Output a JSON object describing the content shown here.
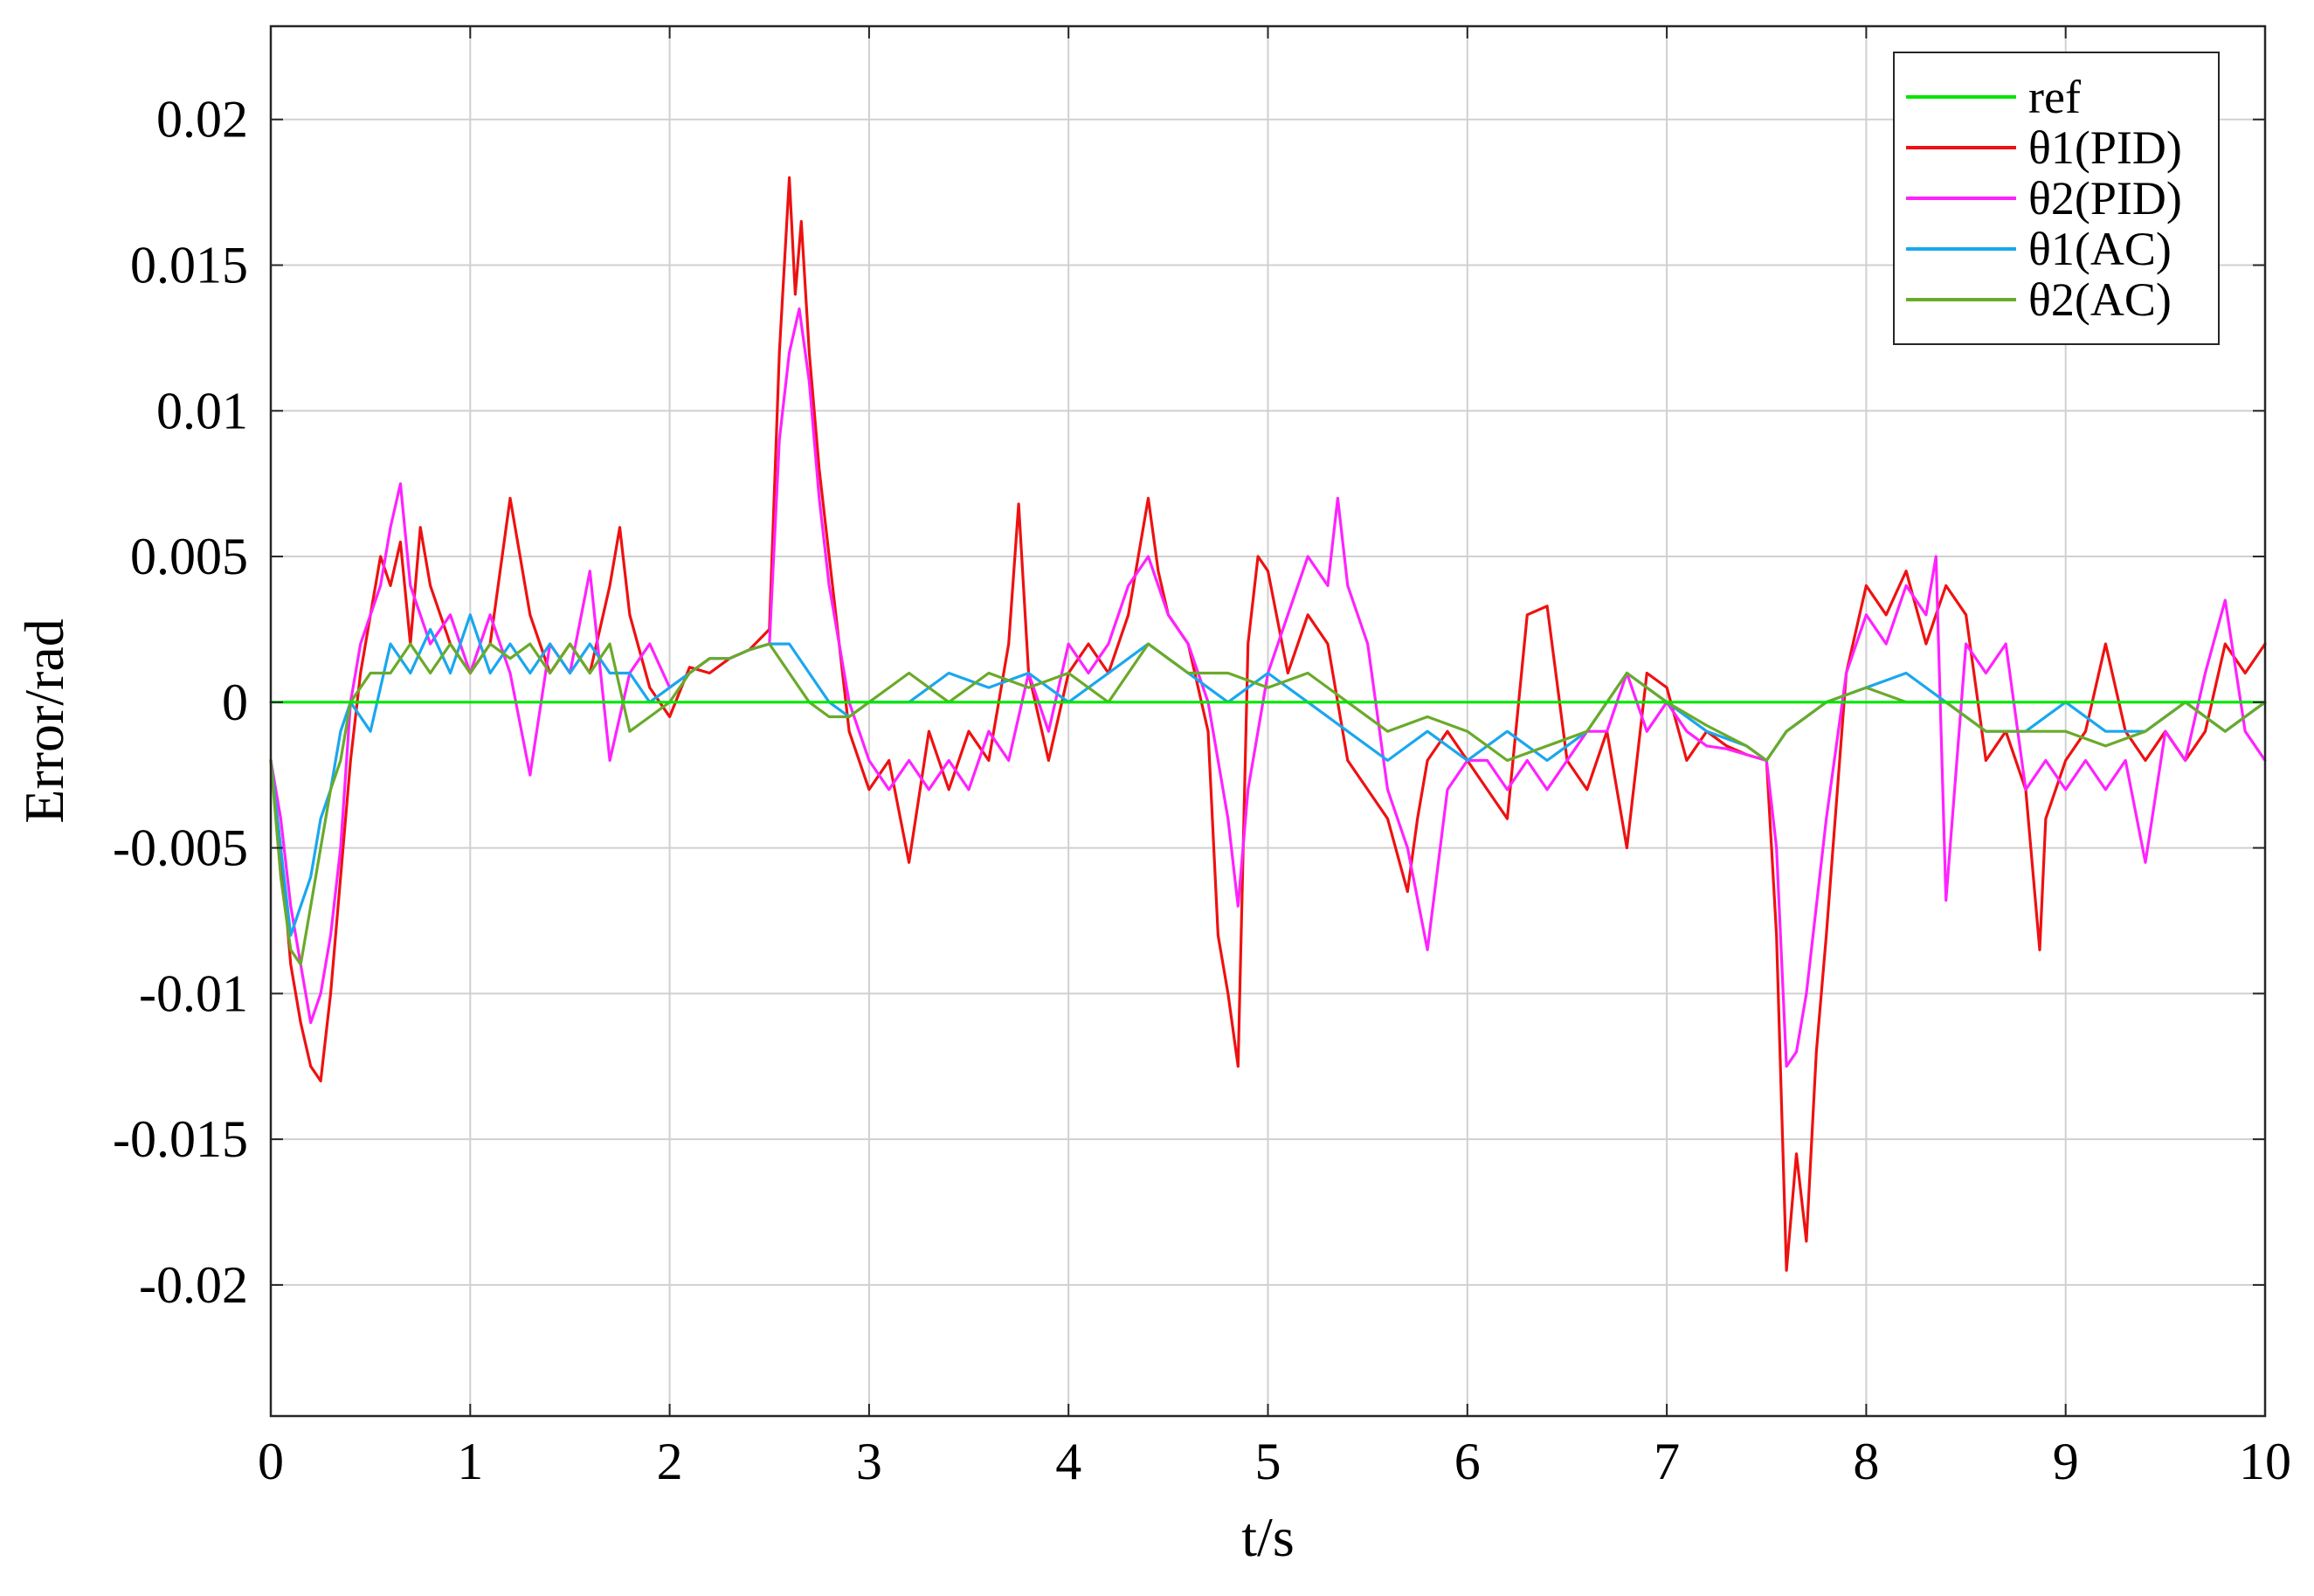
{
  "chart_data": {
    "type": "line",
    "title": "",
    "xlabel": "t/s",
    "ylabel": "Error/rad",
    "xlim": [
      0,
      10
    ],
    "ylim": [
      -0.0245,
      0.0232
    ],
    "xticks": [
      0,
      1,
      2,
      3,
      4,
      5,
      6,
      7,
      8,
      9,
      10
    ],
    "xtick_labels": [
      "0",
      "1",
      "2",
      "3",
      "4",
      "5",
      "6",
      "7",
      "8",
      "9",
      "10"
    ],
    "yticks": [
      -0.02,
      -0.015,
      -0.01,
      -0.005,
      0,
      0.005,
      0.01,
      0.015,
      0.02
    ],
    "ytick_labels": [
      "-0.02",
      "-0.015",
      "-0.01",
      "-0.005",
      "0",
      "0.005",
      "0.01",
      "0.015",
      "0.02"
    ],
    "grid": true,
    "legend_position": "top-right",
    "series": [
      {
        "name": "ref",
        "color": "#00e600",
        "x": [
          0,
          10
        ],
        "y": [
          0,
          0
        ]
      },
      {
        "name": "θ1(PID)",
        "color": "#ee1111",
        "x": [
          0,
          0.05,
          0.1,
          0.15,
          0.2,
          0.25,
          0.3,
          0.35,
          0.4,
          0.45,
          0.5,
          0.55,
          0.6,
          0.65,
          0.7,
          0.75,
          0.8,
          0.9,
          1.0,
          1.1,
          1.2,
          1.3,
          1.4,
          1.5,
          1.6,
          1.7,
          1.75,
          1.8,
          1.9,
          2.0,
          2.1,
          2.2,
          2.3,
          2.4,
          2.5,
          2.55,
          2.6,
          2.63,
          2.66,
          2.7,
          2.75,
          2.8,
          2.85,
          2.9,
          3.0,
          3.1,
          3.2,
          3.3,
          3.4,
          3.5,
          3.6,
          3.7,
          3.75,
          3.8,
          3.9,
          4.0,
          4.1,
          4.2,
          4.3,
          4.4,
          4.45,
          4.5,
          4.6,
          4.7,
          4.75,
          4.8,
          4.85,
          4.9,
          4.95,
          5.0,
          5.1,
          5.2,
          5.3,
          5.4,
          5.5,
          5.6,
          5.7,
          5.75,
          5.8,
          5.9,
          6.0,
          6.1,
          6.2,
          6.3,
          6.4,
          6.5,
          6.6,
          6.7,
          6.8,
          6.9,
          7.0,
          7.1,
          7.2,
          7.3,
          7.4,
          7.5,
          7.55,
          7.6,
          7.65,
          7.7,
          7.75,
          7.8,
          7.9,
          8.0,
          8.1,
          8.2,
          8.3,
          8.4,
          8.5,
          8.6,
          8.7,
          8.8,
          8.87,
          8.9,
          9.0,
          9.1,
          9.2,
          9.3,
          9.4,
          9.5,
          9.6,
          9.7,
          9.8,
          9.9,
          10.0
        ],
        "y": [
          -0.002,
          -0.005,
          -0.009,
          -0.011,
          -0.0125,
          -0.013,
          -0.01,
          -0.006,
          -0.002,
          0.001,
          0.003,
          0.005,
          0.004,
          0.0055,
          0.002,
          0.006,
          0.004,
          0.002,
          0.001,
          0.002,
          0.007,
          0.003,
          0.001,
          0.002,
          0.001,
          0.004,
          0.006,
          0.003,
          0.0005,
          -0.0005,
          0.0012,
          0.001,
          0.0015,
          0.0018,
          0.0025,
          0.012,
          0.018,
          0.014,
          0.0165,
          0.012,
          0.008,
          0.005,
          0.002,
          -0.001,
          -0.003,
          -0.002,
          -0.0055,
          -0.001,
          -0.003,
          -0.001,
          -0.002,
          0.002,
          0.0068,
          0.001,
          -0.002,
          0.001,
          0.002,
          0.001,
          0.003,
          0.007,
          0.0045,
          0.003,
          0.002,
          -0.001,
          -0.008,
          -0.01,
          -0.0125,
          0.002,
          0.005,
          0.0045,
          0.001,
          0.003,
          0.002,
          -0.002,
          -0.003,
          -0.004,
          -0.0065,
          -0.004,
          -0.002,
          -0.001,
          -0.002,
          -0.003,
          -0.004,
          0.003,
          0.0033,
          -0.002,
          -0.003,
          -0.001,
          -0.005,
          0.001,
          0.0005,
          -0.002,
          -0.001,
          -0.0015,
          -0.0018,
          -0.002,
          -0.008,
          -0.0195,
          -0.0155,
          -0.0185,
          -0.012,
          -0.008,
          0.001,
          0.004,
          0.003,
          0.0045,
          0.002,
          0.004,
          0.003,
          -0.002,
          -0.001,
          -0.003,
          -0.0085,
          -0.004,
          -0.002,
          -0.001,
          0.002,
          -0.001,
          -0.002,
          -0.001,
          -0.002,
          -0.001,
          0.002,
          0.001,
          0.002
        ]
      },
      {
        "name": "θ2(PID)",
        "color": "#ff22ff",
        "x": [
          0,
          0.05,
          0.1,
          0.15,
          0.2,
          0.25,
          0.3,
          0.35,
          0.4,
          0.45,
          0.5,
          0.55,
          0.6,
          0.65,
          0.7,
          0.75,
          0.8,
          0.9,
          1.0,
          1.1,
          1.2,
          1.3,
          1.4,
          1.5,
          1.6,
          1.7,
          1.8,
          1.9,
          2.0,
          2.1,
          2.2,
          2.3,
          2.4,
          2.5,
          2.55,
          2.6,
          2.65,
          2.7,
          2.75,
          2.8,
          2.85,
          2.9,
          3.0,
          3.1,
          3.2,
          3.3,
          3.4,
          3.5,
          3.6,
          3.7,
          3.8,
          3.9,
          4.0,
          4.1,
          4.2,
          4.3,
          4.4,
          4.5,
          4.6,
          4.7,
          4.8,
          4.85,
          4.9,
          5.0,
          5.1,
          5.2,
          5.3,
          5.35,
          5.4,
          5.5,
          5.6,
          5.7,
          5.8,
          5.9,
          6.0,
          6.1,
          6.2,
          6.3,
          6.4,
          6.5,
          6.6,
          6.7,
          6.8,
          6.9,
          7.0,
          7.1,
          7.2,
          7.3,
          7.4,
          7.5,
          7.55,
          7.6,
          7.65,
          7.7,
          7.75,
          7.8,
          7.9,
          8.0,
          8.1,
          8.2,
          8.3,
          8.35,
          8.4,
          8.5,
          8.6,
          8.7,
          8.8,
          8.9,
          9.0,
          9.1,
          9.2,
          9.3,
          9.4,
          9.5,
          9.6,
          9.7,
          9.8,
          9.9,
          10.0
        ],
        "y": [
          -0.002,
          -0.004,
          -0.007,
          -0.009,
          -0.011,
          -0.01,
          -0.008,
          -0.005,
          0.0,
          0.002,
          0.003,
          0.004,
          0.006,
          0.0075,
          0.004,
          0.003,
          0.002,
          0.003,
          0.001,
          0.003,
          0.001,
          -0.0025,
          0.002,
          0.001,
          0.0045,
          -0.002,
          0.001,
          0.002,
          0.0005,
          0.001,
          0.0015,
          0.0015,
          0.0018,
          0.002,
          0.009,
          0.012,
          0.0135,
          0.011,
          0.007,
          0.004,
          0.002,
          0.0,
          -0.002,
          -0.003,
          -0.002,
          -0.003,
          -0.002,
          -0.003,
          -0.001,
          -0.002,
          0.001,
          -0.001,
          0.002,
          0.001,
          0.002,
          0.004,
          0.005,
          0.003,
          0.002,
          0.0,
          -0.004,
          -0.007,
          -0.003,
          0.001,
          0.003,
          0.005,
          0.004,
          0.007,
          0.004,
          0.002,
          -0.003,
          -0.005,
          -0.0085,
          -0.003,
          -0.002,
          -0.002,
          -0.003,
          -0.002,
          -0.003,
          -0.002,
          -0.001,
          -0.001,
          0.001,
          -0.001,
          0.0,
          -0.001,
          -0.0015,
          -0.0016,
          -0.0018,
          -0.002,
          -0.005,
          -0.0125,
          -0.012,
          -0.01,
          -0.007,
          -0.004,
          0.001,
          0.003,
          0.002,
          0.004,
          0.003,
          0.005,
          -0.0068,
          0.002,
          0.001,
          0.002,
          -0.003,
          -0.002,
          -0.003,
          -0.002,
          -0.003,
          -0.002,
          -0.0055,
          -0.001,
          -0.002,
          0.001,
          0.0035,
          -0.001,
          -0.002
        ]
      },
      {
        "name": "θ1(AC)",
        "color": "#1aa7ee",
        "x": [
          0,
          0.05,
          0.1,
          0.15,
          0.2,
          0.25,
          0.3,
          0.35,
          0.4,
          0.5,
          0.6,
          0.7,
          0.8,
          0.9,
          1.0,
          1.1,
          1.2,
          1.3,
          1.4,
          1.5,
          1.6,
          1.7,
          1.8,
          1.9,
          2.0,
          2.1,
          2.2,
          2.3,
          2.4,
          2.5,
          2.6,
          2.7,
          2.8,
          2.9,
          3.0,
          3.2,
          3.4,
          3.6,
          3.8,
          4.0,
          4.2,
          4.4,
          4.6,
          4.8,
          5.0,
          5.2,
          5.4,
          5.6,
          5.8,
          6.0,
          6.2,
          6.4,
          6.6,
          6.8,
          7.0,
          7.2,
          7.4,
          7.5,
          7.6,
          7.8,
          8.0,
          8.2,
          8.4,
          8.6,
          8.8,
          9.0,
          9.2,
          9.4,
          9.6,
          9.8,
          10.0
        ],
        "y": [
          -0.002,
          -0.005,
          -0.008,
          -0.007,
          -0.006,
          -0.004,
          -0.003,
          -0.001,
          0.0,
          -0.001,
          0.002,
          0.001,
          0.0025,
          0.001,
          0.003,
          0.001,
          0.002,
          0.001,
          0.002,
          0.001,
          0.002,
          0.001,
          0.001,
          0.0,
          0.0005,
          0.001,
          0.0015,
          0.0015,
          0.0018,
          0.002,
          0.002,
          0.001,
          0.0,
          -0.0005,
          0.0,
          0.0,
          0.001,
          0.0005,
          0.001,
          0.0,
          0.001,
          0.002,
          0.001,
          0.0,
          0.001,
          0.0,
          -0.001,
          -0.002,
          -0.001,
          -0.002,
          -0.001,
          -0.002,
          -0.001,
          0.001,
          0.0,
          -0.001,
          -0.0015,
          -0.002,
          -0.001,
          0.0,
          0.0005,
          0.001,
          0.0,
          -0.001,
          -0.001,
          0.0,
          -0.001,
          -0.001,
          0.0,
          -0.001,
          0.0
        ]
      },
      {
        "name": "θ2(AC)",
        "color": "#6aaa2a",
        "x": [
          0,
          0.05,
          0.1,
          0.15,
          0.2,
          0.25,
          0.3,
          0.35,
          0.4,
          0.5,
          0.6,
          0.7,
          0.8,
          0.9,
          1.0,
          1.1,
          1.2,
          1.3,
          1.4,
          1.5,
          1.6,
          1.7,
          1.8,
          1.9,
          2.0,
          2.1,
          2.2,
          2.3,
          2.4,
          2.5,
          2.6,
          2.7,
          2.8,
          2.9,
          3.0,
          3.2,
          3.4,
          3.6,
          3.8,
          4.0,
          4.2,
          4.4,
          4.6,
          4.8,
          5.0,
          5.2,
          5.4,
          5.6,
          5.8,
          6.0,
          6.2,
          6.4,
          6.6,
          6.8,
          7.0,
          7.2,
          7.4,
          7.5,
          7.6,
          7.8,
          8.0,
          8.2,
          8.4,
          8.6,
          8.8,
          9.0,
          9.2,
          9.4,
          9.6,
          9.8,
          10.0
        ],
        "y": [
          -0.002,
          -0.006,
          -0.0085,
          -0.009,
          -0.007,
          -0.005,
          -0.003,
          -0.002,
          0.0,
          0.001,
          0.001,
          0.002,
          0.001,
          0.002,
          0.001,
          0.002,
          0.0015,
          0.002,
          0.001,
          0.002,
          0.001,
          0.002,
          -0.001,
          -0.0005,
          0.0,
          0.001,
          0.0015,
          0.0015,
          0.0018,
          0.002,
          0.001,
          0.0,
          -0.0005,
          -0.0005,
          0.0,
          0.001,
          0.0,
          0.001,
          0.0005,
          0.001,
          0.0,
          0.002,
          0.001,
          0.001,
          0.0005,
          0.001,
          0.0,
          -0.001,
          -0.0005,
          -0.001,
          -0.002,
          -0.0015,
          -0.001,
          0.001,
          0.0,
          -0.0008,
          -0.0015,
          -0.002,
          -0.001,
          0.0,
          0.0005,
          0.0,
          0.0,
          -0.001,
          -0.001,
          -0.001,
          -0.0015,
          -0.001,
          0.0,
          -0.001,
          0.0
        ]
      }
    ]
  }
}
